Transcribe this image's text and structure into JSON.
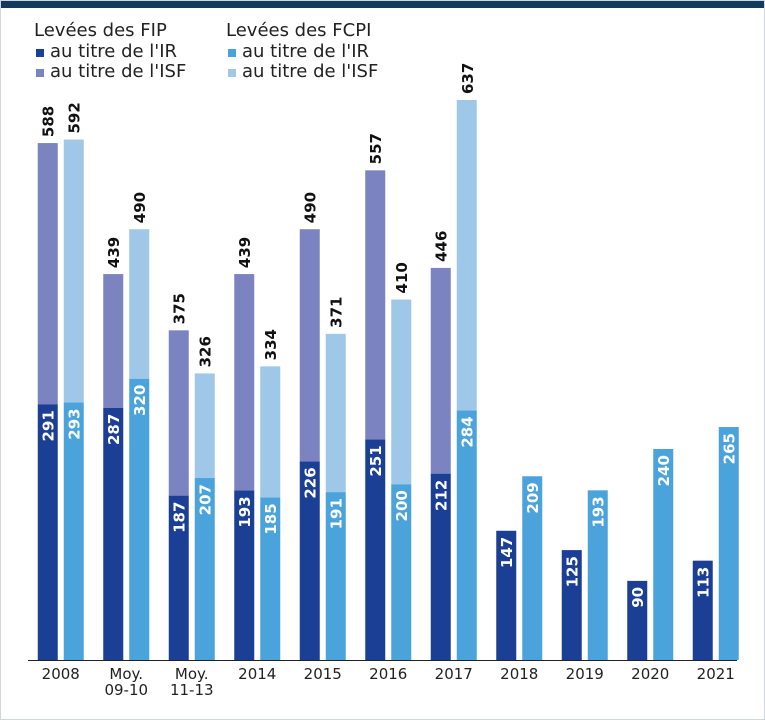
{
  "chart_data": {
    "type": "grouped-stacked-bar",
    "categories": [
      "2008",
      "Moy. 09-10",
      "Moy. 11-13",
      "2014",
      "2015",
      "2016",
      "2017",
      "2018",
      "2019",
      "2020",
      "2021"
    ],
    "groups": [
      {
        "name": "Levées des FIP",
        "series": [
          {
            "name": "au titre de l'IR",
            "color": "#1b3f94",
            "values": [
              291,
              287,
              187,
              193,
              226,
              251,
              212,
              147,
              125,
              90,
              113
            ]
          },
          {
            "name": "au titre de l'ISF",
            "color": "#7b83c0",
            "values": [
              297,
              152,
              188,
              246,
              264,
              306,
              234,
              null,
              null,
              null,
              null
            ]
          }
        ],
        "totals": [
          588,
          439,
          375,
          439,
          490,
          557,
          446,
          null,
          null,
          null,
          null
        ]
      },
      {
        "name": "Levées des FCPI",
        "series": [
          {
            "name": "au titre de l'IR",
            "color": "#4ba3db",
            "values": [
              293,
              320,
              207,
              185,
              191,
              200,
              284,
              209,
              193,
              240,
              265
            ]
          },
          {
            "name": "au titre de l'ISF",
            "color": "#9fc7e8",
            "values": [
              299,
              170,
              119,
              149,
              180,
              210,
              353,
              null,
              null,
              null,
              null
            ]
          }
        ],
        "totals": [
          592,
          490,
          326,
          334,
          371,
          410,
          637,
          null,
          null,
          null,
          null
        ]
      }
    ]
  }
}
